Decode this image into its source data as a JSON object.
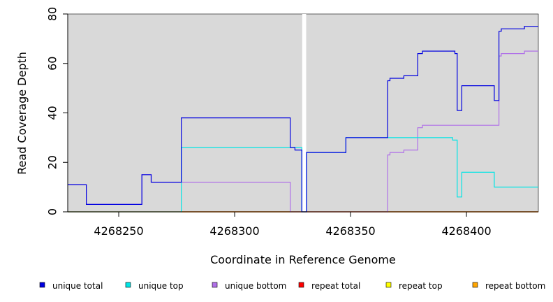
{
  "chart_data": {
    "type": "line",
    "step": true,
    "xlabel": "Coordinate in Reference Genome",
    "ylabel": "Read Coverage Depth",
    "xlim": [
      4268228,
      4268431
    ],
    "ylim": [
      0,
      80
    ],
    "x_ticks": [
      4268250,
      4268300,
      4268350,
      4268400
    ],
    "y_ticks": [
      0,
      20,
      40,
      60,
      80
    ],
    "background": "#d9d9d9",
    "gap": [
      4268329,
      4268331
    ],
    "legend_placement": "bottom",
    "series": [
      {
        "name": "unique total",
        "color": "#0000e0",
        "points": [
          [
            4268228,
            11
          ],
          [
            4268236,
            11
          ],
          [
            4268236,
            3
          ],
          [
            4268260,
            3
          ],
          [
            4268260,
            15
          ],
          [
            4268264,
            15
          ],
          [
            4268264,
            12
          ],
          [
            4268277,
            12
          ],
          [
            4268277,
            38
          ],
          [
            4268324,
            38
          ],
          [
            4268324,
            26
          ],
          [
            4268326,
            26
          ],
          [
            4268326,
            25
          ],
          [
            4268329,
            25
          ],
          [
            4268329,
            0
          ],
          [
            4268331,
            0
          ],
          [
            4268331,
            24
          ],
          [
            4268348,
            24
          ],
          [
            4268348,
            30
          ],
          [
            4268366,
            30
          ],
          [
            4268366,
            53
          ],
          [
            4268367,
            53
          ],
          [
            4268367,
            54
          ],
          [
            4268373,
            54
          ],
          [
            4268373,
            55
          ],
          [
            4268379,
            55
          ],
          [
            4268379,
            64
          ],
          [
            4268381,
            64
          ],
          [
            4268381,
            65
          ],
          [
            4268395,
            65
          ],
          [
            4268395,
            64
          ],
          [
            4268396,
            64
          ],
          [
            4268396,
            41
          ],
          [
            4268398,
            41
          ],
          [
            4268398,
            51
          ],
          [
            4268412,
            51
          ],
          [
            4268412,
            45
          ],
          [
            4268414,
            45
          ],
          [
            4268414,
            73
          ],
          [
            4268415,
            73
          ],
          [
            4268415,
            74
          ],
          [
            4268425,
            74
          ],
          [
            4268425,
            75
          ],
          [
            4268431,
            75
          ]
        ]
      },
      {
        "name": "unique top",
        "color": "#00e5e5",
        "points": [
          [
            4268228,
            0
          ],
          [
            4268277,
            0
          ],
          [
            4268277,
            26
          ],
          [
            4268324,
            26
          ],
          [
            4268324,
            26
          ],
          [
            4268329,
            26
          ],
          [
            4268329,
            0
          ],
          [
            4268331,
            0
          ],
          [
            4268331,
            24
          ],
          [
            4268348,
            24
          ],
          [
            4268348,
            30
          ],
          [
            4268394,
            30
          ],
          [
            4268394,
            29
          ],
          [
            4268396,
            29
          ],
          [
            4268396,
            6
          ],
          [
            4268398,
            6
          ],
          [
            4268398,
            16
          ],
          [
            4268412,
            16
          ],
          [
            4268412,
            10
          ],
          [
            4268431,
            10
          ]
        ]
      },
      {
        "name": "unique bottom",
        "color": "#b070e8",
        "points": [
          [
            4268228,
            11
          ],
          [
            4268236,
            11
          ],
          [
            4268236,
            3
          ],
          [
            4268260,
            3
          ],
          [
            4268260,
            15
          ],
          [
            4268264,
            15
          ],
          [
            4268264,
            12
          ],
          [
            4268277,
            12
          ],
          [
            4268324,
            12
          ],
          [
            4268324,
            0
          ],
          [
            4268366,
            0
          ],
          [
            4268366,
            23
          ],
          [
            4268367,
            23
          ],
          [
            4268367,
            24
          ],
          [
            4268373,
            24
          ],
          [
            4268373,
            25
          ],
          [
            4268379,
            25
          ],
          [
            4268379,
            34
          ],
          [
            4268381,
            34
          ],
          [
            4268381,
            35
          ],
          [
            4268414,
            35
          ],
          [
            4268414,
            63
          ],
          [
            4268415,
            63
          ],
          [
            4268415,
            64
          ],
          [
            4268425,
            64
          ],
          [
            4268425,
            65
          ],
          [
            4268431,
            65
          ]
        ]
      },
      {
        "name": "repeat total",
        "color": "#ff0000",
        "points": [
          [
            4268228,
            0
          ],
          [
            4268431,
            0
          ]
        ]
      },
      {
        "name": "repeat top",
        "color": "#ffff00",
        "points": [
          [
            4268228,
            0
          ],
          [
            4268431,
            0
          ]
        ]
      },
      {
        "name": "repeat bottom",
        "color": "#ffa500",
        "points": [
          [
            4268277,
            0
          ],
          [
            4268431,
            0
          ]
        ]
      }
    ]
  }
}
